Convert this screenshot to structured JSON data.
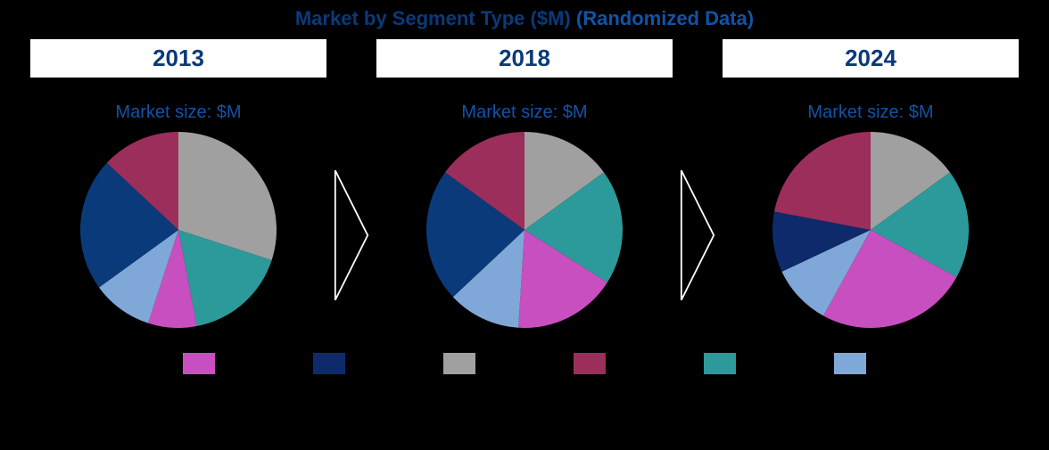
{
  "title_main": "Market by Segment Type ($M)",
  "title_note": "(Randomized Data)",
  "subtitle": "Market size: $M",
  "background_color": "#000000",
  "year_box": {
    "bg": "#ffffff",
    "text_color": "#0a3a7a",
    "border_color": "#000000",
    "font_size": 26
  },
  "title_colors": {
    "main": "#0a3a7a",
    "note": "#1253a6"
  },
  "subtitle_color": "#1253a6",
  "arrow_color": "#ffffff",
  "segment_colors": {
    "gray": "#a0a0a0",
    "teal": "#2c9a9a",
    "magenta": "#c84fc0",
    "ltblue": "#7fa8d8",
    "navy_dk": "#0a3a7a",
    "navy_lt": "#0f2a6a",
    "maroon": "#9c2e5c"
  },
  "legend_order": [
    "magenta",
    "navy_lt",
    "gray",
    "maroon",
    "teal",
    "ltblue"
  ],
  "panels": [
    {
      "year": "2013",
      "pie_diameter": 220,
      "slices": [
        {
          "seg": "gray",
          "pct": 30
        },
        {
          "seg": "teal",
          "pct": 17
        },
        {
          "seg": "magenta",
          "pct": 8
        },
        {
          "seg": "ltblue",
          "pct": 10
        },
        {
          "seg": "navy_dk",
          "pct": 22
        },
        {
          "seg": "maroon",
          "pct": 13
        }
      ]
    },
    {
      "year": "2018",
      "pie_diameter": 220,
      "slices": [
        {
          "seg": "gray",
          "pct": 15
        },
        {
          "seg": "teal",
          "pct": 19
        },
        {
          "seg": "magenta",
          "pct": 17
        },
        {
          "seg": "ltblue",
          "pct": 12
        },
        {
          "seg": "navy_dk",
          "pct": 22
        },
        {
          "seg": "maroon",
          "pct": 15
        }
      ]
    },
    {
      "year": "2024",
      "pie_diameter": 220,
      "slices": [
        {
          "seg": "gray",
          "pct": 15
        },
        {
          "seg": "teal",
          "pct": 18
        },
        {
          "seg": "magenta",
          "pct": 25
        },
        {
          "seg": "ltblue",
          "pct": 10
        },
        {
          "seg": "navy_lt",
          "pct": 10
        },
        {
          "seg": "maroon",
          "pct": 22
        }
      ]
    }
  ]
}
